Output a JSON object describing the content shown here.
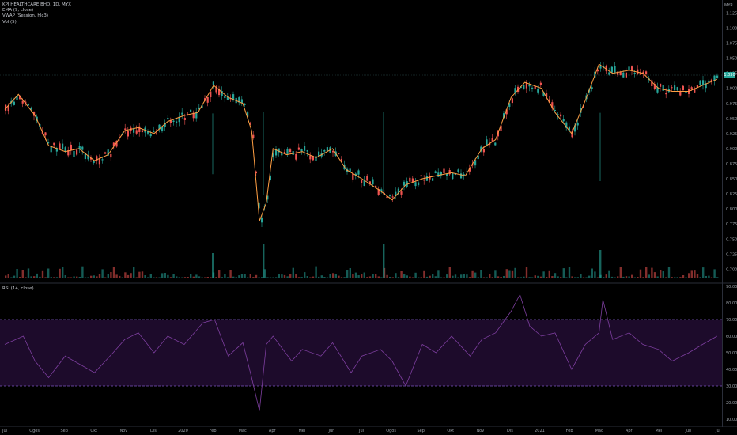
{
  "legend": {
    "symbol": "KPJ HEALTHCARE BHD, 1D, MYX",
    "ema": "EMA (9, close)",
    "vwap": "VWAP (Session, hlc3)",
    "vol": "Vol (5)",
    "rsi": "RSI (14, close)"
  },
  "currency": "MYR",
  "last_price": "1.030",
  "colors": {
    "up": "#26a69a",
    "down": "#ef5350",
    "ema": "#ff9f43",
    "vwap": "#2962ff",
    "rsi_line": "#7e3fa0",
    "rsi_band": "#1d0b2b",
    "rsi_dash": "#7e57c2"
  },
  "chart_data": [
    {
      "type": "candlestick",
      "title": "",
      "x_ticks": [
        "Jul",
        "Ogos",
        "Sep",
        "Okt",
        "Nov",
        "Dis",
        "2020",
        "Feb",
        "Mac",
        "Apr",
        "Mei",
        "Jun",
        "Jul",
        "Ogos",
        "Sep",
        "Okt",
        "Nov",
        "Dis",
        "2021",
        "Feb",
        "Mac",
        "Apr",
        "Mei",
        "Jun",
        "Jul"
      ],
      "y_ticks": [
        "1.125",
        "1.100",
        "1.075",
        "1.050",
        "1.025",
        "1.000",
        "0.975",
        "0.950",
        "0.925",
        "0.900",
        "0.875",
        "0.850",
        "0.825",
        "0.800",
        "0.775",
        "0.750",
        "0.725",
        "0.700"
      ],
      "ylim": [
        0.69,
        1.14
      ],
      "series": [
        {
          "name": "EMA (9, close)",
          "x": [
            "2019-07",
            "2019-07-15",
            "2019-08",
            "2019-08-15",
            "2019-09",
            "2019-09-15",
            "2019-10",
            "2019-10-15",
            "2019-11",
            "2019-11-15",
            "2019-12",
            "2019-12-15",
            "2020-01",
            "2020-01-15",
            "2020-01-31",
            "2020-02-15",
            "2020-03-01",
            "2020-03-10",
            "2020-03-18",
            "2020-03-25",
            "2020-04",
            "2020-04-15",
            "2020-05",
            "2020-05-15",
            "2020-06",
            "2020-06-15",
            "2020-07",
            "2020-07-20",
            "2020-08",
            "2020-08-15",
            "2020-09",
            "2020-09-15",
            "2020-10",
            "2020-10-15",
            "2020-11",
            "2020-11-15",
            "2020-12",
            "2020-12-15",
            "2021-01",
            "2021-01-15",
            "2021-02",
            "2021-02-15",
            "2021-03",
            "2021-03-15",
            "2021-04",
            "2021-04-15",
            "2021-05",
            "2021-05-15",
            "2021-06",
            "2021-06-15",
            "2021-06-30"
          ],
          "y": [
            0.965,
            0.99,
            0.955,
            0.905,
            0.895,
            0.9,
            0.88,
            0.89,
            0.93,
            0.935,
            0.925,
            0.945,
            0.955,
            0.96,
            1.005,
            0.985,
            0.975,
            0.93,
            0.78,
            0.81,
            0.9,
            0.89,
            0.895,
            0.885,
            0.9,
            0.865,
            0.85,
            0.83,
            0.815,
            0.84,
            0.85,
            0.855,
            0.86,
            0.855,
            0.9,
            0.915,
            0.985,
            1.01,
            1.0,
            0.96,
            0.925,
            0.98,
            1.04,
            1.025,
            1.03,
            1.025,
            1.0,
            0.995,
            0.995,
            1.005,
            1.015
          ]
        }
      ],
      "annotations": [
        "1.030"
      ]
    },
    {
      "type": "line",
      "title": "RSI (14, close)",
      "y_ticks": [
        "90.00",
        "80.00",
        "70.00",
        "60.00",
        "50.00",
        "40.00",
        "30.00",
        "20.00",
        "10.00"
      ],
      "ylim": [
        10,
        90
      ],
      "bands": [
        30,
        70
      ],
      "x": [
        "2019-07",
        "2019-07-20",
        "2019-08",
        "2019-08-15",
        "2019-09",
        "2019-10",
        "2019-10-20",
        "2019-11",
        "2019-11-15",
        "2019-12",
        "2019-12-15",
        "2020-01",
        "2020-01-20",
        "2020-02",
        "2020-02-15",
        "2020-03",
        "2020-03-10",
        "2020-03-18",
        "2020-03-25",
        "2020-04",
        "2020-04-20",
        "2020-05",
        "2020-05-20",
        "2020-06",
        "2020-06-20",
        "2020-07",
        "2020-07-20",
        "2020-08",
        "2020-08-15",
        "2020-09",
        "2020-09-15",
        "2020-10",
        "2020-10-20",
        "2020-11",
        "2020-11-15",
        "2020-12",
        "2020-12-10",
        "2020-12-20",
        "2021-01",
        "2021-01-15",
        "2021-02",
        "2021-02-15",
        "2021-03",
        "2021-03-05",
        "2021-03-15",
        "2021-04",
        "2021-04-15",
        "2021-05",
        "2021-05-15",
        "2021-06",
        "2021-06-15",
        "2021-06-30"
      ],
      "y": [
        55,
        60,
        45,
        35,
        48,
        38,
        50,
        58,
        62,
        50,
        60,
        55,
        68,
        70,
        48,
        56,
        35,
        15,
        55,
        60,
        45,
        52,
        48,
        56,
        38,
        48,
        52,
        45,
        30,
        55,
        50,
        60,
        48,
        58,
        62,
        75,
        85,
        66,
        60,
        62,
        40,
        55,
        62,
        82,
        58,
        62,
        55,
        52,
        45,
        50,
        55,
        60
      ]
    }
  ]
}
